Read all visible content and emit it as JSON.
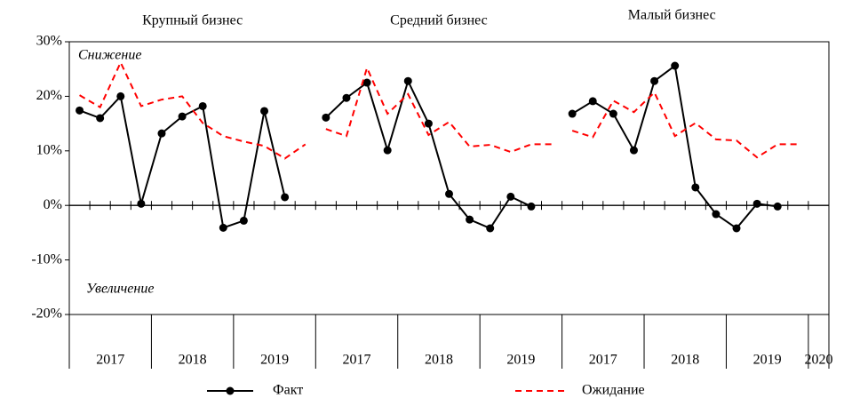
{
  "chart_data": {
    "type": "line",
    "ylim": [
      -20,
      30
    ],
    "yticks": [
      {
        "value": -20,
        "label": "-20%"
      },
      {
        "value": -10,
        "label": "-10%"
      },
      {
        "value": 0,
        "label": "0%"
      },
      {
        "value": 10,
        "label": "10%"
      },
      {
        "value": 20,
        "label": "20%"
      },
      {
        "value": 30,
        "label": "30%"
      }
    ],
    "annotations": [
      "Снижение",
      "Увеличение"
    ],
    "panels": [
      {
        "title": "Крупный бизнес",
        "years": [
          "2017",
          "2018",
          "2019"
        ]
      },
      {
        "title": "Средний бизнес",
        "years": [
          "2017",
          "2018",
          "2019"
        ]
      },
      {
        "title": "Малый бизнес",
        "years": [
          "2017",
          "2018",
          "2019",
          "2020"
        ]
      }
    ],
    "series": [
      {
        "name": "Факт",
        "color": "#000000",
        "dashed": false,
        "markers": true,
        "values": [
          [
            17.4,
            16.0,
            20.0,
            0.3,
            13.2,
            16.3,
            18.2,
            -4.1,
            -2.8,
            17.3,
            1.5,
            null
          ],
          [
            16.1,
            19.7,
            22.5,
            10.1,
            22.8,
            15.0,
            2.1,
            -2.6,
            -4.2,
            1.6,
            -0.2,
            null
          ],
          [
            16.8,
            19.1,
            16.8,
            10.1,
            22.8,
            25.6,
            3.3,
            -1.6,
            -4.2,
            0.3,
            -0.2,
            null
          ]
        ]
      },
      {
        "name": "Ожидание",
        "color": "#ff0000",
        "dashed": true,
        "markers": false,
        "values": [
          [
            20.2,
            18.0,
            26.2,
            18.2,
            19.4,
            20.0,
            15.1,
            12.7,
            11.7,
            10.9,
            8.6,
            11.2
          ],
          [
            14.0,
            12.7,
            25.2,
            16.8,
            20.4,
            12.9,
            15.3,
            10.8,
            11.1,
            9.8,
            11.2,
            11.2
          ],
          [
            13.7,
            12.5,
            19.2,
            17.1,
            20.7,
            12.7,
            15.1,
            12.1,
            11.9,
            8.8,
            11.2,
            11.2
          ]
        ]
      }
    ]
  }
}
